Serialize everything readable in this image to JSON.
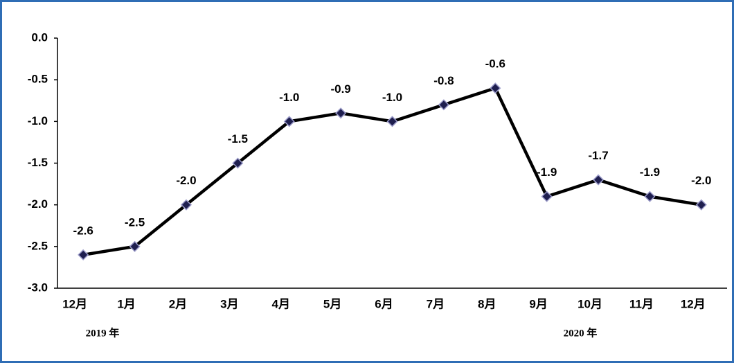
{
  "chart_data": {
    "type": "line",
    "categories": [
      "12月",
      "1月",
      "2月",
      "3月",
      "4月",
      "5月",
      "6月",
      "7月",
      "8月",
      "9月",
      "10月",
      "11月",
      "12月"
    ],
    "values": [
      -2.6,
      -2.5,
      -2.0,
      -1.5,
      -1.0,
      -0.9,
      -1.0,
      -0.8,
      -0.6,
      -1.9,
      -1.7,
      -1.9,
      -2.0
    ],
    "value_labels": [
      "-2.6",
      "-2.5",
      "-2.0",
      "-1.5",
      "-1.0",
      "-0.9",
      "-1.0",
      "-0.8",
      "-0.6",
      "-1.9",
      "-1.7",
      "-1.9",
      "-2.0"
    ],
    "color": "#000000",
    "marker_color": "#1f1f4f",
    "ylim": [
      -3.0,
      0.0
    ],
    "yticks": [
      {
        "value": -3.0,
        "label": "-3.0"
      },
      -2.5,
      {
        "value": -2.0,
        "label": "-2.0"
      },
      -1.5,
      {
        "value": -1.0,
        "label": "-1.0"
      },
      -0.5,
      {
        "value": 0.0,
        "label": "0.0"
      }
    ],
    "grid": false,
    "annotations": [
      "2019 年",
      "2020 年"
    ]
  }
}
